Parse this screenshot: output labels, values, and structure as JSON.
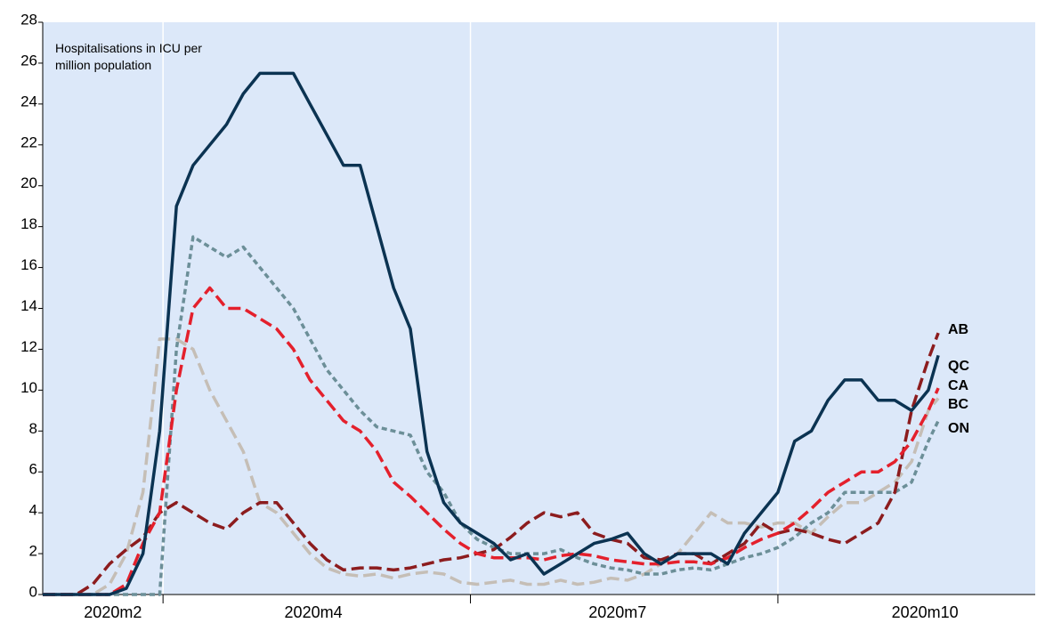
{
  "chart_data": {
    "type": "line",
    "annotation": [
      "Hospitalisations in ICU per",
      "million population"
    ],
    "x": [
      25,
      30,
      35,
      40,
      45,
      50,
      55,
      60,
      65,
      70,
      75,
      80,
      85,
      90,
      95,
      100,
      105,
      110,
      115,
      120,
      125,
      130,
      135,
      140,
      145,
      150,
      155,
      160,
      165,
      170,
      175,
      180,
      185,
      190,
      195,
      200,
      205,
      210,
      215,
      220,
      225,
      230,
      235,
      240,
      245,
      250,
      255,
      260,
      265,
      270,
      275,
      280,
      285,
      290,
      293
    ],
    "xlim": [
      25,
      322
    ],
    "xticks": [
      {
        "value": 46,
        "label": "2020m2"
      },
      {
        "value": 106,
        "label": "2020m4"
      },
      {
        "value": 197,
        "label": "2020m7"
      },
      {
        "value": 289,
        "label": "2020m10"
      }
    ],
    "x_gridlines": [
      61,
      153,
      245
    ],
    "ylim": [
      0,
      28
    ],
    "yticks": [
      0,
      2,
      4,
      6,
      8,
      10,
      12,
      14,
      16,
      18,
      20,
      22,
      24,
      26,
      28
    ],
    "series": [
      {
        "name": "AB",
        "color": "#8c1c1e",
        "line_style": "long-dash",
        "values": [
          0,
          0,
          0,
          0.5,
          1.5,
          2.2,
          2.8,
          4,
          4.5,
          4,
          3.5,
          3.2,
          4,
          4.5,
          4.5,
          3.5,
          2.5,
          1.7,
          1.2,
          1.3,
          1.3,
          1.2,
          1.3,
          1.5,
          1.7,
          1.8,
          2,
          2.2,
          2.8,
          3.5,
          4,
          3.8,
          4,
          3,
          2.7,
          2.5,
          1.8,
          1.7,
          2,
          2,
          1.5,
          2,
          2.5,
          3.5,
          3,
          3.2,
          3,
          2.7,
          2.5,
          3,
          3.5,
          5,
          9,
          11.5,
          12.8
        ]
      },
      {
        "name": "QC",
        "color": "#0b3352",
        "line_style": "solid",
        "values": [
          0,
          0,
          0,
          0,
          0,
          0.3,
          2,
          8,
          19,
          21,
          22,
          23,
          24.5,
          25.5,
          25.5,
          25.5,
          24,
          22.5,
          21,
          21,
          18,
          15,
          13,
          7,
          4.5,
          3.5,
          3,
          2.5,
          1.7,
          2,
          1,
          1.5,
          2,
          2.5,
          2.7,
          3,
          2,
          1.5,
          2,
          2,
          2,
          1.5,
          3,
          4,
          5,
          7.5,
          8,
          9.5,
          10.5,
          10.5,
          9.5,
          9.5,
          9,
          10,
          11.7
        ]
      },
      {
        "name": "CA",
        "color": "#e4202c",
        "line_style": "long-dash",
        "values": [
          0,
          0,
          0,
          0,
          0,
          0.5,
          2.5,
          4,
          10,
          14,
          15,
          14,
          14,
          13.5,
          13,
          12,
          10.5,
          9.5,
          8.5,
          8,
          7,
          5.5,
          4.8,
          4,
          3.2,
          2.5,
          2,
          1.8,
          1.8,
          1.8,
          1.7,
          1.9,
          2,
          1.9,
          1.7,
          1.6,
          1.5,
          1.5,
          1.6,
          1.6,
          1.5,
          1.8,
          2.3,
          2.7,
          3,
          3.5,
          4.2,
          5,
          5.5,
          6,
          6,
          6.5,
          7.5,
          9,
          10.1
        ]
      },
      {
        "name": "BC",
        "color": "#c5beb6",
        "line_style": "long-dash",
        "values": [
          0,
          0,
          0,
          0,
          0.5,
          2,
          5,
          12.5,
          12.5,
          12,
          10,
          8.5,
          7,
          4.5,
          4,
          3,
          2,
          1.3,
          1,
          0.9,
          1,
          0.8,
          1,
          1.1,
          1,
          0.6,
          0.5,
          0.6,
          0.7,
          0.5,
          0.5,
          0.7,
          0.5,
          0.6,
          0.8,
          0.7,
          1,
          1.5,
          2,
          3,
          4,
          3.5,
          3.5,
          3.3,
          3.5,
          3.5,
          3,
          3.8,
          4.5,
          4.5,
          5,
          5.5,
          6.5,
          9,
          9.6
        ]
      },
      {
        "name": "ON",
        "color": "#6c8f98",
        "line_style": "short-dash",
        "values": [
          0,
          0,
          0,
          0,
          0,
          0,
          0,
          0,
          12,
          17.5,
          17,
          16.5,
          17,
          16,
          15,
          14,
          12.5,
          11,
          10,
          9,
          8.2,
          8,
          7.8,
          6,
          5,
          3.5,
          2.7,
          2.3,
          2,
          2,
          2,
          2.2,
          1.8,
          1.5,
          1.3,
          1.2,
          1,
          1,
          1.2,
          1.3,
          1.2,
          1.5,
          1.8,
          2,
          2.3,
          2.8,
          3.5,
          4,
          5,
          5,
          5,
          5,
          5.5,
          7.5,
          8.5
        ]
      }
    ]
  }
}
